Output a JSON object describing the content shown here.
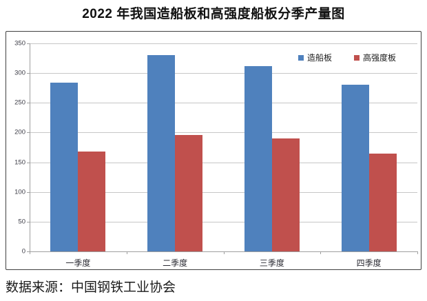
{
  "title": "2022 年我国造船板和高强度船板分季产量图",
  "source": "数据来源：中国钢铁工业协会",
  "colors": {
    "series_blue": "#4F81BD",
    "series_red": "#C0504D",
    "gridline": "#C6C6C6",
    "axis_line": "#9E9E9E",
    "frame_border": "#3F3F3F",
    "tick_label": "#3C3C46",
    "title_text": "#111111"
  },
  "chart_data": {
    "type": "bar",
    "title": "2022 年我国造船板和高强度船板分季产量图",
    "categories": [
      "一季度",
      "二季度",
      "三季度",
      "四季度"
    ],
    "series": [
      {
        "name": "造船板",
        "color": "#4F81BD",
        "values": [
          284,
          330,
          312,
          281
        ]
      },
      {
        "name": "高强度板",
        "color": "#C0504D",
        "values": [
          168,
          196,
          190,
          165
        ]
      }
    ],
    "xlabel": "",
    "ylabel": "",
    "ylim": [
      0,
      350
    ],
    "yticks": [
      0,
      50,
      100,
      150,
      200,
      250,
      300,
      350
    ],
    "grid": true,
    "legend_position": "top-right",
    "source_note": "数据来源：中国钢铁工业协会"
  }
}
